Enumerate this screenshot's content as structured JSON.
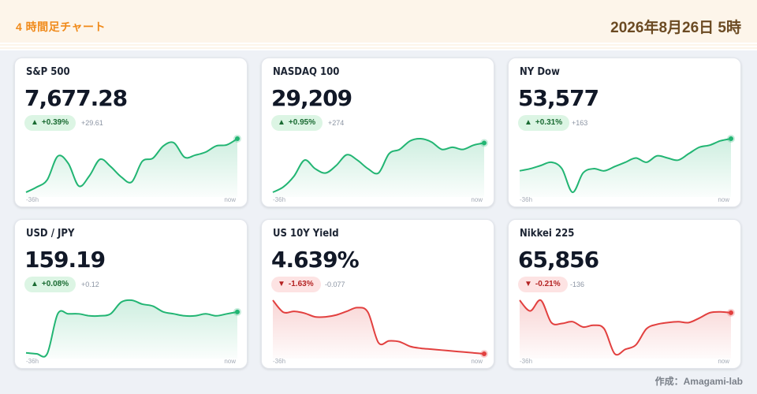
{
  "header": {
    "title": "4 時間足チャート",
    "date": "2026年8月26日 5時"
  },
  "axis": {
    "start": "-36h",
    "end": "now"
  },
  "colors": {
    "up": "#22b573",
    "down": "#e2403f"
  },
  "cards": [
    {
      "name": "S&P 500",
      "value": "7,677.28",
      "change_pct": "+0.39%",
      "change_abs": "+29.61",
      "direction": "up",
      "series": [
        0,
        5,
        12,
        35,
        28,
        6,
        16,
        32,
        25,
        15,
        10,
        30,
        33,
        45,
        48,
        34,
        36,
        39,
        45,
        46,
        52
      ]
    },
    {
      "name": "NASDAQ 100",
      "value": "29,209",
      "change_pct": "+0.95%",
      "change_abs": "+274",
      "direction": "up",
      "series": [
        0,
        5,
        15,
        30,
        22,
        18,
        25,
        35,
        30,
        22,
        18,
        36,
        40,
        48,
        50,
        47,
        40,
        42,
        40,
        44,
        46
      ]
    },
    {
      "name": "NY Dow",
      "value": "53,577",
      "change_pct": "+0.31%",
      "change_abs": "+163",
      "direction": "up",
      "series": [
        20,
        22,
        25,
        28,
        22,
        0,
        18,
        22,
        20,
        24,
        28,
        32,
        28,
        34,
        32,
        30,
        36,
        42,
        44,
        48,
        50
      ]
    },
    {
      "name": "USD / JPY",
      "value": "159.19",
      "change_pct": "+0.08%",
      "change_abs": "+0.12",
      "direction": "up",
      "series": [
        0,
        -1,
        -1,
        40,
        40,
        40,
        38,
        38,
        40,
        52,
        54,
        50,
        48,
        42,
        40,
        38,
        38,
        40,
        38,
        40,
        42
      ]
    },
    {
      "name": "US 10Y Yield",
      "value": "4.639%",
      "change_pct": "-1.63%",
      "change_abs": "-0.077",
      "direction": "down",
      "series": [
        58,
        45,
        46,
        44,
        40,
        40,
        42,
        46,
        50,
        45,
        12,
        14,
        13,
        8,
        6,
        5,
        4,
        3,
        2,
        1,
        0
      ]
    },
    {
      "name": "Nikkei 225",
      "value": "65,856",
      "change_pct": "-0.21%",
      "change_abs": "-136",
      "direction": "down",
      "series": [
        60,
        48,
        60,
        35,
        34,
        36,
        30,
        32,
        28,
        0,
        5,
        10,
        28,
        33,
        35,
        36,
        35,
        40,
        46,
        47,
        46
      ]
    }
  ],
  "credit": "作成：Amagami-lab"
}
